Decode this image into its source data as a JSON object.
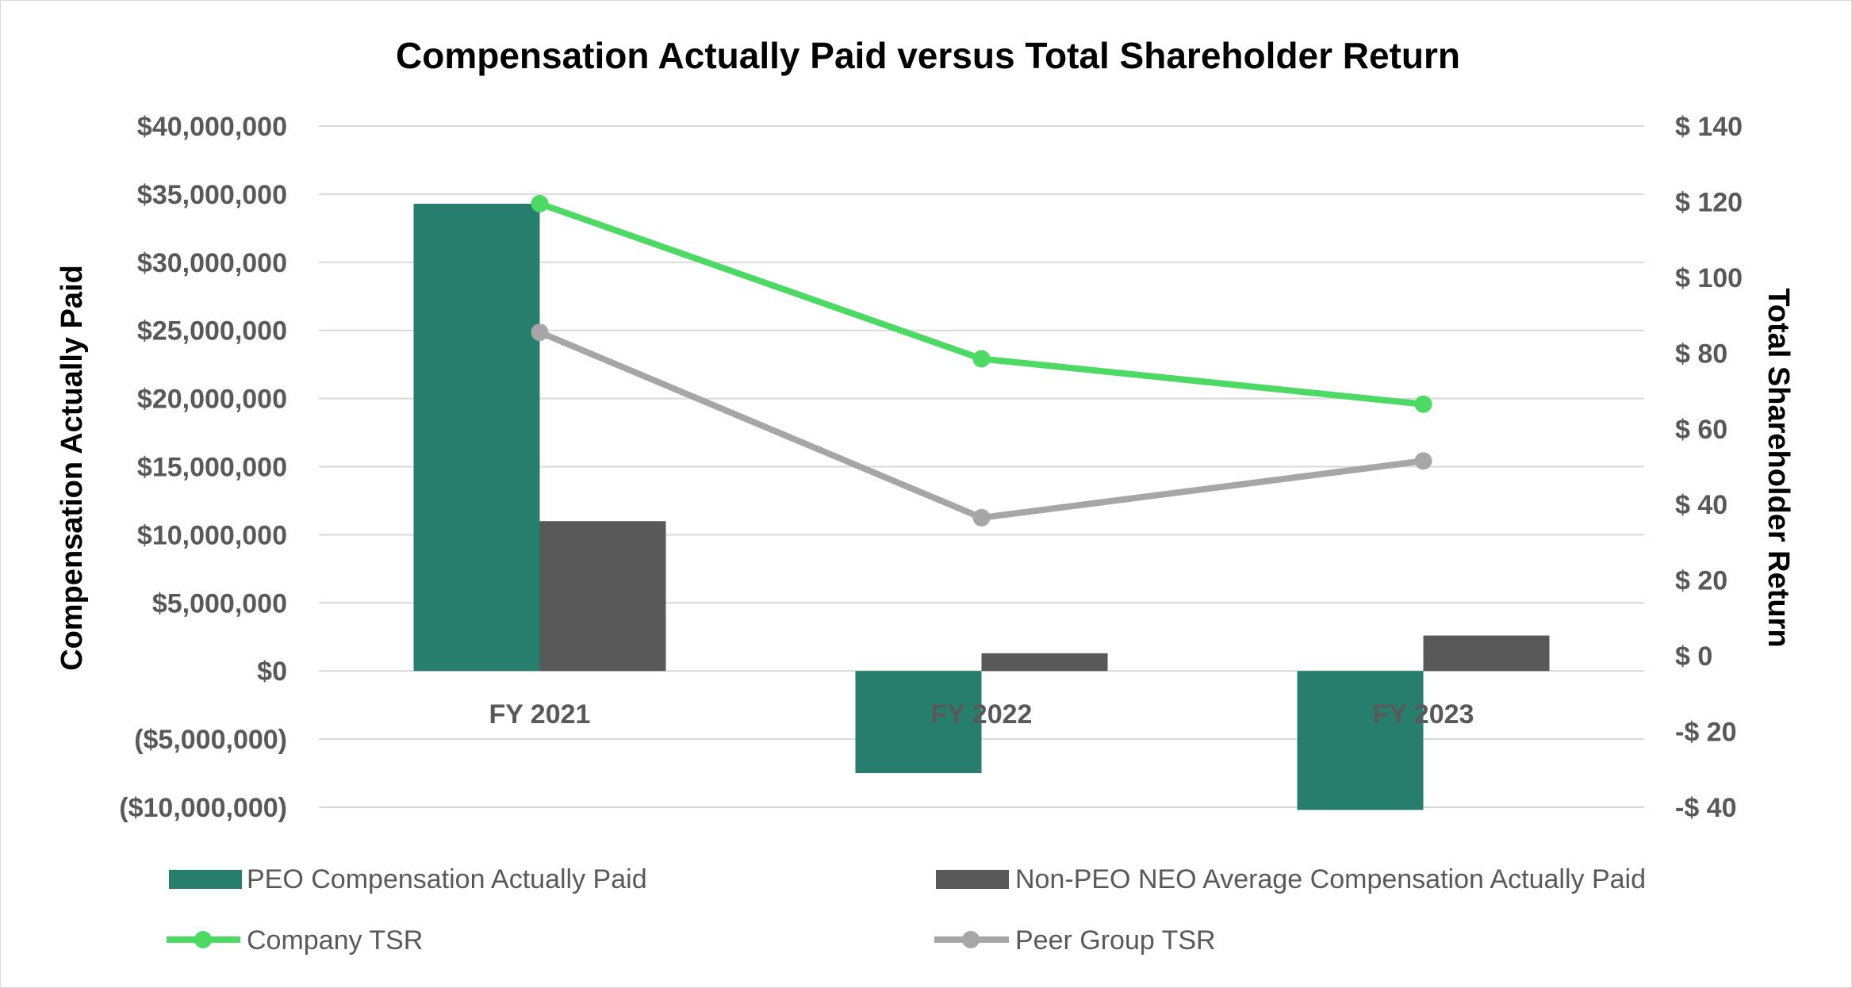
{
  "chart_data": {
    "type": "bar",
    "title": "Compensation Actually Paid versus Total Shareholder Return",
    "categories": [
      "FY 2021",
      "FY 2022",
      "FY 2023"
    ],
    "ylabel": "Compensation Actually Paid",
    "y2label": "Total Shareholder Return",
    "ylim": [
      -10000000,
      40000000
    ],
    "y2lim": [
      -40,
      140
    ],
    "yticks": [
      -10000000,
      -5000000,
      0,
      5000000,
      10000000,
      15000000,
      20000000,
      25000000,
      30000000,
      35000000,
      40000000
    ],
    "ytick_labels": [
      "($10,000,000)",
      "($5,000,000)",
      "$0",
      "$5,000,000",
      "$10,000,000",
      "$15,000,000",
      "$20,000,000",
      "$25,000,000",
      "$30,000,000",
      "$35,000,000",
      "$40,000,000"
    ],
    "y2ticks": [
      -40,
      -20,
      0,
      20,
      40,
      60,
      80,
      100,
      120,
      140
    ],
    "y2tick_labels": [
      "-$ 40",
      "-$ 20",
      "$ 0",
      "$ 20",
      "$ 40",
      "$ 60",
      "$ 80",
      "$ 100",
      "$ 120",
      "$ 140"
    ],
    "grid": true,
    "legend_position": "bottom",
    "series": [
      {
        "name": "PEO Compensation Actually Paid",
        "kind": "bar",
        "axis": "left",
        "color": "#277E6C",
        "values": [
          34300000,
          -7500000,
          -10200000
        ]
      },
      {
        "name": "Non-PEO NEO Average Compensation Actually Paid",
        "kind": "bar",
        "axis": "left",
        "color": "#595959",
        "values": [
          11000000,
          1300000,
          2600000
        ]
      },
      {
        "name": "Company TSR",
        "kind": "line",
        "axis": "right",
        "color": "#4CD964",
        "values": [
          119.5,
          78.5,
          66.5
        ]
      },
      {
        "name": "Peer Group TSR",
        "kind": "line",
        "axis": "right",
        "color": "#A6A6A6",
        "values": [
          85.5,
          36.5,
          51.5
        ]
      }
    ]
  }
}
